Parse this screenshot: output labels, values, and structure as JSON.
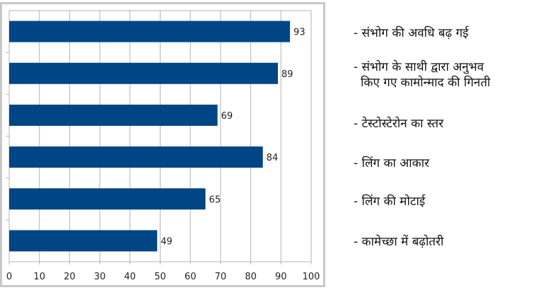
{
  "chart_data": {
    "type": "bar",
    "orientation": "horizontal",
    "categories": [
      "- संभोग की अवधि बढ़ गई",
      "- संभोग के साथी द्वारा अनुभव कि‍ए गए कामोन्माद की गिनती",
      "- टेस्टोस्टेरोन का स्तर",
      "- लिंग का आकार",
      "- लिंग की मोटाई",
      "- कामेच्छा में बढ़ोतरी"
    ],
    "values": [
      93,
      89,
      69,
      84,
      65,
      49
    ],
    "xlim": [
      0,
      100
    ],
    "xticks": [
      "0",
      "10",
      "20",
      "30",
      "40",
      "50",
      "60",
      "70",
      "80",
      "90",
      "100"
    ],
    "grid": true,
    "bar_color": "#004586",
    "title": "",
    "xlabel": "",
    "ylabel": ""
  },
  "labels": {
    "l0": "- संभोग की अवधि बढ़ गई",
    "l1a": "- संभोग के साथी द्वारा अनुभव",
    "l1b": "कि‍ए गए कामोन्माद की गिनती",
    "l2": "- टेस्टोस्टेरोन का स्तर",
    "l3": "- लिंग का आकार",
    "l4": "- लिंग की मोटाई",
    "l5": "- कामेच्छा में बढ़ोतरी"
  }
}
